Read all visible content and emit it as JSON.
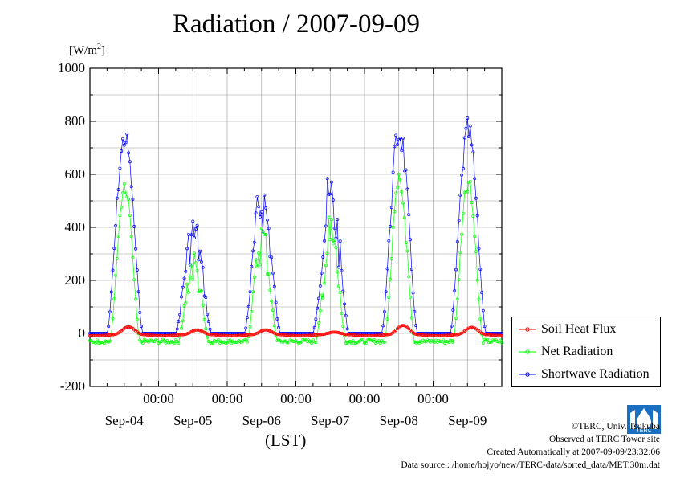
{
  "title": "Radiation / 2007-09-09",
  "unit": {
    "base": "[W/m",
    "sup": "2",
    "close": "]"
  },
  "x_axis_label": "(LST)",
  "y_ticks": [
    "1000",
    "800",
    "600",
    "400",
    "200",
    "0",
    "-200"
  ],
  "x_time_labels": [
    "00:00",
    "00:00",
    "00:00",
    "00:00",
    "00:00"
  ],
  "x_day_labels": [
    "Sep-04",
    "Sep-05",
    "Sep-06",
    "Sep-07",
    "Sep-08",
    "Sep-09"
  ],
  "legend": [
    {
      "label": "Soil Heat Flux",
      "color": "#ff0000"
    },
    {
      "label": "Net Radiation",
      "color": "#00ff00"
    },
    {
      "label": "Shortwave Radiation",
      "color": "#0000ff"
    }
  ],
  "credits": {
    "copyright": "©TERC, Univ. Tsukuba",
    "observed": "Observed at TERC Tower site",
    "created": "Created Automatically at 2007-09-09/23:32:06",
    "source": "Data source : /home/hojyo/new/TERC-data/sorted_data/MET.30m.dat"
  },
  "logo_text": "TERC",
  "chart_data": {
    "type": "line",
    "x_unit": "hours since 2007-09-04 00:00 LST",
    "xlim": [
      0,
      144
    ],
    "ylim": [
      -200,
      1000
    ],
    "grid": true,
    "legend_position": "right",
    "series": [
      {
        "name": "Shortwave Radiation",
        "color": "#0000ff",
        "days": [
          {
            "amp": 780,
            "noise": 0.08
          },
          {
            "amp": 470,
            "noise": 0.3
          },
          {
            "amp": 615,
            "noise": 0.28
          },
          {
            "amp": 640,
            "noise": 0.35
          },
          {
            "amp": 830,
            "noise": 0.12
          },
          {
            "amp": 815,
            "noise": 0.1
          }
        ],
        "sunrise": 6,
        "sunset": 18.5,
        "night": 0
      },
      {
        "name": "Net Radiation",
        "color": "#00ff00",
        "days": [
          {
            "amp": 630,
            "noise": 0.08
          },
          {
            "amp": 360,
            "noise": 0.3
          },
          {
            "amp": 480,
            "noise": 0.28
          },
          {
            "amp": 500,
            "noise": 0.35
          },
          {
            "amp": 640,
            "noise": 0.12
          },
          {
            "amp": 630,
            "noise": 0.1
          }
        ],
        "sunrise": 7,
        "sunset": 17.5,
        "night": -30
      },
      {
        "name": "Soil Heat Flux",
        "color": "#ff0000",
        "days": [
          {
            "amp": 30
          },
          {
            "amp": 18
          },
          {
            "amp": 18
          },
          {
            "amp": 10
          },
          {
            "amp": 35
          },
          {
            "amp": 28
          }
        ],
        "peak_hour": 13.5,
        "night": -5
      }
    ]
  }
}
